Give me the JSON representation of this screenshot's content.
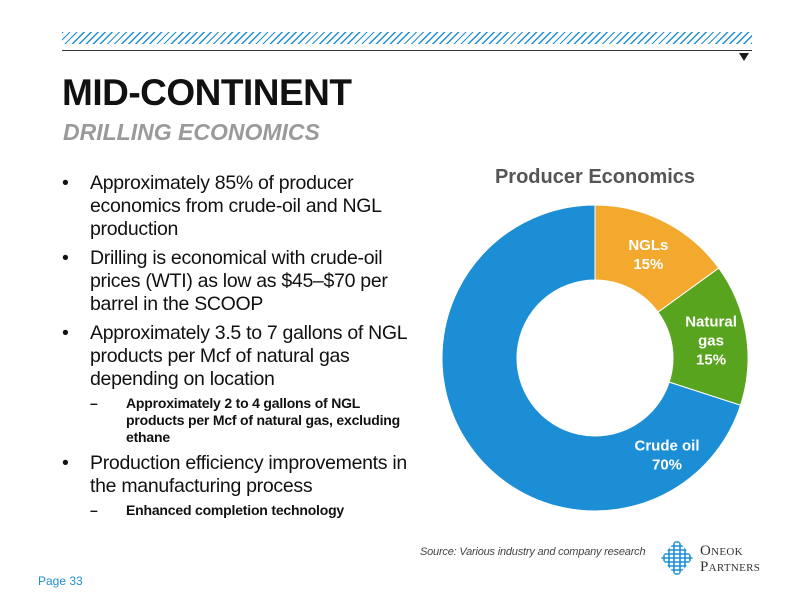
{
  "header": {
    "title": "MID-CONTINENT",
    "subtitle": "DRILLING ECONOMICS"
  },
  "bullets": [
    {
      "text": "Approximately 85% of producer economics from crude-oil and NGL production",
      "sub": []
    },
    {
      "text": "Drilling is economical with crude-oil prices (WTI) as low as $45–$70 per barrel in the SCOOP",
      "sub": []
    },
    {
      "text": "Approximately 3.5 to 7 gallons of NGL products per Mcf of natural gas depending on location",
      "sub": [
        "Approximately 2 to 4 gallons of NGL products per Mcf of natural gas, excluding ethane"
      ]
    },
    {
      "text": "Production efficiency improvements in the manufacturing process",
      "sub": [
        "Enhanced completion technology"
      ]
    }
  ],
  "bullet_marker": "•",
  "sub_marker": "–",
  "chart_data": {
    "type": "pie",
    "title": "Producer Economics",
    "donut": true,
    "slices": [
      {
        "label": [
          "NGLs",
          "15%"
        ],
        "category": "NGLs",
        "value": 15,
        "color": "#f2a92e"
      },
      {
        "label": [
          "Natural",
          "gas",
          "15%"
        ],
        "category": "Natural gas",
        "value": 15,
        "color": "#58a41f"
      },
      {
        "label": [
          "Crude oil",
          "70%"
        ],
        "category": "Crude oil",
        "value": 70,
        "color": "#1c8ed6"
      }
    ]
  },
  "footer": {
    "source": "Source: Various industry and company research",
    "page": "Page 33"
  },
  "logo": {
    "line1": "Oneok",
    "line2": "Partners",
    "icon": "oneok-diamond-icon",
    "color": "#1f8fd6"
  }
}
